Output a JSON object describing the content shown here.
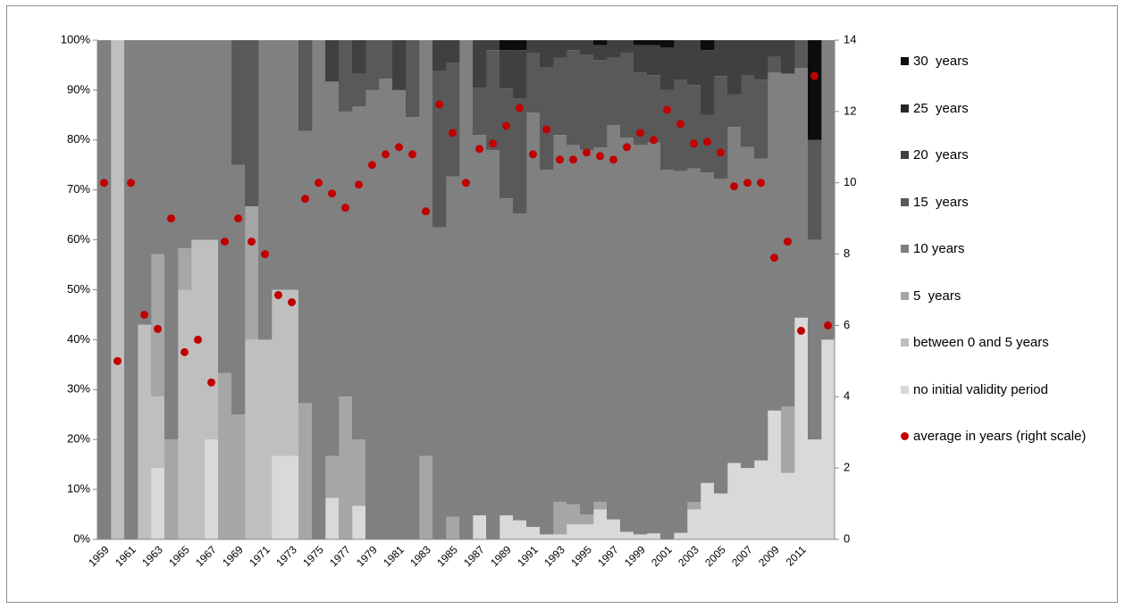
{
  "chart_data": {
    "type": "bar",
    "stacked": true,
    "categories": [
      "1959",
      null,
      "1961",
      null,
      "1963",
      null,
      "1965",
      null,
      "1967",
      null,
      "1969",
      null,
      "1971",
      null,
      "1973",
      null,
      "1975",
      null,
      "1977",
      null,
      "1979",
      null,
      "1981",
      null,
      "1983",
      null,
      "1985",
      null,
      "1987",
      null,
      "1989",
      null,
      "1991",
      null,
      "1993",
      null,
      "1995",
      null,
      "1997",
      null,
      "1999",
      null,
      "2001",
      null,
      "2003",
      null,
      "2005",
      null,
      "2007",
      null,
      "2009",
      null,
      "2011",
      null,
      null
    ],
    "ylim": [
      0,
      100
    ],
    "yticks": [
      {
        "value": 0,
        "label": "0%"
      },
      {
        "value": 10,
        "label": "10%"
      },
      {
        "value": 20,
        "label": "20%"
      },
      {
        "value": 30,
        "label": "30%"
      },
      {
        "value": 40,
        "label": "40%"
      },
      {
        "value": 50,
        "label": "50%"
      },
      {
        "value": 60,
        "label": "60%"
      },
      {
        "value": 70,
        "label": "70%"
      },
      {
        "value": 80,
        "label": "80%"
      },
      {
        "value": 90,
        "label": "90%"
      },
      {
        "value": 100,
        "label": "100%"
      }
    ],
    "y2lim": [
      0,
      14
    ],
    "y2ticks": [
      0,
      2,
      4,
      6,
      8,
      10,
      12,
      14
    ],
    "series": [
      {
        "name": "no initial validity period",
        "color": "#d9d9d9",
        "values": [
          0,
          0,
          0,
          0,
          14.3,
          0,
          0,
          0,
          20,
          0,
          0,
          0,
          0,
          16.7,
          16.7,
          0,
          0,
          8.3,
          0,
          6.7,
          0,
          0,
          0,
          0,
          0,
          0,
          0,
          0,
          4.8,
          0,
          4.8,
          3.8,
          2.5,
          1,
          1,
          3,
          3,
          6,
          4,
          1.5,
          1,
          1.2,
          0,
          1.3,
          6,
          11.3,
          9.2,
          15.3,
          14.3,
          15.8,
          25.8,
          13.3,
          44.4,
          20,
          40
        ]
      },
      {
        "name": "between 0 and 5 years",
        "color": "#bfbfbf",
        "values": [
          0,
          100,
          0,
          43,
          14.3,
          0,
          50,
          60,
          40,
          0,
          0,
          40,
          40,
          33.3,
          33.3,
          0,
          0,
          0,
          0,
          0,
          0,
          0,
          0,
          0,
          0,
          0,
          0,
          0,
          0,
          0,
          0,
          0,
          0,
          0,
          0,
          0,
          0,
          0,
          0,
          0,
          0,
          0,
          0,
          0,
          0,
          0,
          0,
          0,
          0,
          0,
          0,
          0,
          0,
          0,
          0
        ]
      },
      {
        "name": "5  years",
        "color": "#a6a6a6",
        "values": [
          0,
          0,
          0,
          0,
          28.5,
          20,
          8.3,
          0,
          0,
          33.3,
          25,
          26.7,
          0,
          0,
          0,
          27.3,
          0,
          8.4,
          28.6,
          13.3,
          0,
          0,
          0,
          0,
          16.7,
          0,
          4.5,
          0,
          0,
          0,
          0,
          0,
          0,
          0,
          6.5,
          4,
          2,
          1.5,
          0,
          0,
          0,
          0,
          0,
          0,
          1.5,
          0,
          0,
          0,
          0,
          0,
          0,
          13.3,
          0,
          0,
          0
        ]
      },
      {
        "name": "10 years",
        "color": "#808080",
        "values": [
          100,
          0,
          100,
          57,
          42.9,
          80,
          41.7,
          40,
          40,
          66.7,
          50,
          0,
          60,
          50,
          50,
          54.5,
          100,
          75,
          57.1,
          66.7,
          90,
          92.3,
          90,
          84.6,
          83.3,
          62.5,
          68.2,
          100,
          76.2,
          78,
          63.5,
          61.5,
          83,
          73,
          73.5,
          72,
          73,
          71,
          79,
          79,
          78,
          78.3,
          74,
          72.5,
          66.8,
          62.2,
          63,
          67.3,
          64.3,
          60.5,
          67.7,
          66.7,
          50,
          40,
          60
        ]
      },
      {
        "name": "15  years",
        "color": "#595959",
        "values": [
          0,
          0,
          0,
          0,
          0,
          0,
          0,
          0,
          0,
          0,
          25,
          33.3,
          0,
          0,
          0,
          18.2,
          0,
          0,
          14.3,
          6.6,
          10,
          7.7,
          0,
          15.4,
          0,
          31.3,
          22.7,
          0,
          9.5,
          20,
          22,
          23,
          12,
          20.5,
          15.5,
          19,
          19,
          17.5,
          13.5,
          17,
          14.5,
          13.5,
          16,
          18.2,
          16.7,
          11.5,
          20.6,
          6.5,
          14.3,
          15.8,
          3.2,
          0,
          5.6,
          20,
          0
        ]
      },
      {
        "name": "20  years",
        "color": "#404040",
        "values": [
          0,
          0,
          0,
          0,
          0,
          0,
          0,
          0,
          0,
          0,
          0,
          0,
          0,
          0,
          0,
          0,
          0,
          8.3,
          0,
          6.7,
          0,
          0,
          10,
          0,
          0,
          6.2,
          4.6,
          0,
          9.5,
          2,
          7.7,
          9.7,
          2.5,
          5.5,
          3.5,
          2,
          3,
          3,
          3.5,
          2.5,
          5.5,
          6,
          8.5,
          8,
          9,
          13,
          7.2,
          10.9,
          7.1,
          7.9,
          3.3,
          6.7,
          0,
          0,
          0
        ]
      },
      {
        "name": "25  years",
        "color": "#262626",
        "values": [
          0,
          0,
          0,
          0,
          0,
          0,
          0,
          0,
          0,
          0,
          0,
          0,
          0,
          0,
          0,
          0,
          0,
          0,
          0,
          0,
          0,
          0,
          0,
          0,
          0,
          0,
          0,
          0,
          0,
          0,
          0,
          0,
          0,
          0,
          0,
          0,
          0,
          0,
          0,
          0,
          0,
          0,
          0,
          0,
          0,
          0,
          0,
          0,
          0,
          0,
          0,
          0,
          0,
          0,
          0
        ]
      },
      {
        "name": "30  years",
        "color": "#0d0d0d",
        "values": [
          0,
          0,
          0,
          0,
          0,
          0,
          0,
          0,
          0,
          0,
          0,
          0,
          0,
          0,
          0,
          0,
          0,
          0,
          0,
          0,
          0,
          0,
          0,
          0,
          0,
          0,
          0,
          0,
          0,
          0,
          2,
          2,
          0,
          0,
          0,
          0,
          0,
          1,
          0,
          0,
          1,
          1,
          1.5,
          0,
          0,
          2,
          0,
          0,
          0,
          0,
          0,
          0,
          0,
          20,
          0
        ]
      },
      {
        "name": "average in years (right scale)",
        "color": "#c00000",
        "type": "scatter",
        "axis": "y2",
        "values": [
          10,
          5,
          10,
          6.3,
          5.9,
          9,
          5.25,
          5.6,
          4.4,
          8.35,
          9,
          8.35,
          8,
          6.85,
          6.65,
          9.55,
          10,
          9.7,
          9.3,
          9.95,
          10.5,
          10.8,
          11,
          10.8,
          9.2,
          12.2,
          11.4,
          10,
          10.95,
          11.1,
          11.6,
          12.1,
          10.8,
          11.5,
          10.65,
          10.65,
          10.85,
          10.75,
          10.65,
          11,
          11.4,
          11.2,
          12.05,
          11.65,
          11.1,
          11.15,
          10.85,
          9.9,
          10,
          10,
          7.9,
          8.35,
          5.85,
          13,
          6
        ]
      }
    ]
  }
}
